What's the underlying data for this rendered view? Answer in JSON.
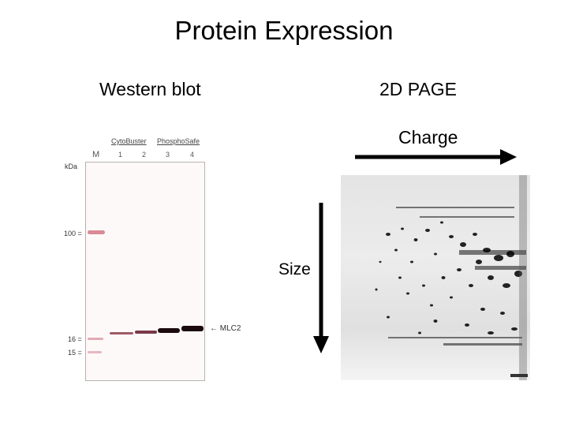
{
  "slide": {
    "title": "Protein Expression",
    "western_heading": "Western blot",
    "page_heading": "2D PAGE",
    "charge_label": "Charge",
    "size_label": "Size"
  },
  "blot": {
    "group1": "CytoBuster",
    "group2": "PhosphoSafe",
    "marker_lane": "M",
    "lanes": [
      "1",
      "2",
      "3",
      "4"
    ],
    "unit": "kDa",
    "mw_markers": [
      "100",
      "16",
      "15"
    ],
    "band_label": "MLC2"
  },
  "colors": {
    "band": "#1b0a10",
    "marker_band": "#d98a96",
    "arrow": "#000000"
  }
}
